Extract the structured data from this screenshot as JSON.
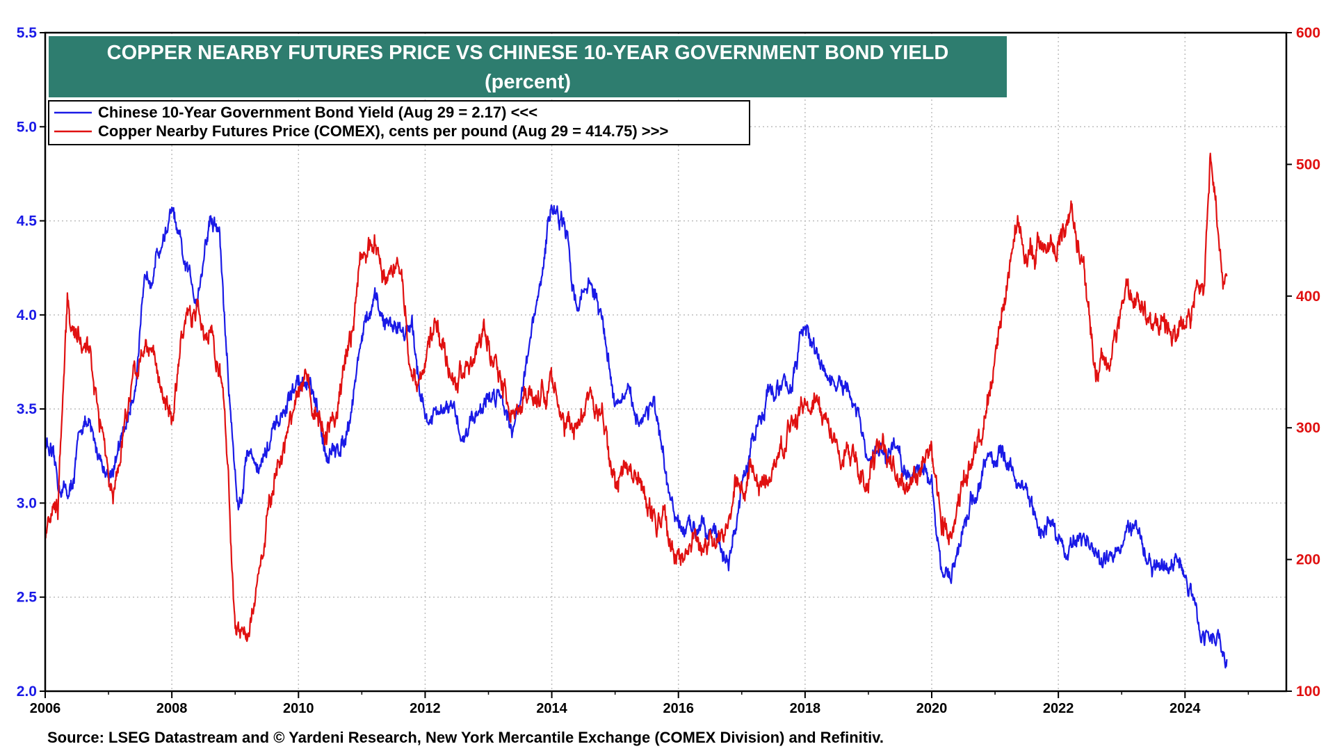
{
  "chart_data": {
    "type": "line",
    "title": "COPPER NEARBY FUTURES PRICE VS CHINESE 10-YEAR GOVERNMENT BOND YIELD",
    "subtitle": "(percent)",
    "source": "Source: LSEG Datastream and © Yardeni Research, New York Mercantile Exchange (COMEX Division) and Refinitiv.",
    "x_range": [
      2006,
      2025.6
    ],
    "x_ticks": [
      "2006",
      "2008",
      "2010",
      "2012",
      "2014",
      "2016",
      "2018",
      "2020",
      "2022",
      "2024"
    ],
    "y_left": {
      "range": [
        2.0,
        5.5
      ],
      "ticks": [
        "2.0",
        "2.5",
        "3.0",
        "3.5",
        "4.0",
        "4.5",
        "5.0",
        "5.5"
      ],
      "color": "#1a1ae6"
    },
    "y_right": {
      "range": [
        100,
        600
      ],
      "ticks": [
        "100",
        "200",
        "300",
        "400",
        "500",
        "600"
      ],
      "color": "#e01010"
    },
    "series": [
      {
        "name": "Chinese 10-Year Government Bond Yield",
        "legend": "Chinese 10-Year Government Bond Yield (Aug 29 = 2.17) <<<",
        "axis": "left",
        "color": "#1a1ae6",
        "points": [
          [
            2006.0,
            3.35
          ],
          [
            2006.2,
            3.1
          ],
          [
            2006.4,
            3.05
          ],
          [
            2006.6,
            3.45
          ],
          [
            2006.8,
            3.3
          ],
          [
            2007.0,
            3.15
          ],
          [
            2007.2,
            3.3
          ],
          [
            2007.4,
            3.6
          ],
          [
            2007.6,
            4.2
          ],
          [
            2007.8,
            4.35
          ],
          [
            2008.0,
            4.55
          ],
          [
            2008.2,
            4.25
          ],
          [
            2008.4,
            4.1
          ],
          [
            2008.6,
            4.5
          ],
          [
            2008.75,
            4.45
          ],
          [
            2008.9,
            3.6
          ],
          [
            2009.05,
            2.95
          ],
          [
            2009.2,
            3.3
          ],
          [
            2009.4,
            3.2
          ],
          [
            2009.6,
            3.35
          ],
          [
            2009.8,
            3.5
          ],
          [
            2010.0,
            3.65
          ],
          [
            2010.2,
            3.6
          ],
          [
            2010.4,
            3.3
          ],
          [
            2010.6,
            3.25
          ],
          [
            2010.8,
            3.45
          ],
          [
            2011.0,
            3.9
          ],
          [
            2011.2,
            4.05
          ],
          [
            2011.4,
            3.95
          ],
          [
            2011.6,
            3.95
          ],
          [
            2011.8,
            3.9
          ],
          [
            2012.0,
            3.45
          ],
          [
            2012.2,
            3.45
          ],
          [
            2012.4,
            3.5
          ],
          [
            2012.6,
            3.35
          ],
          [
            2012.8,
            3.5
          ],
          [
            2013.0,
            3.55
          ],
          [
            2013.2,
            3.6
          ],
          [
            2013.4,
            3.4
          ],
          [
            2013.6,
            3.75
          ],
          [
            2013.8,
            4.1
          ],
          [
            2014.0,
            4.6
          ],
          [
            2014.2,
            4.45
          ],
          [
            2014.4,
            4.05
          ],
          [
            2014.6,
            4.2
          ],
          [
            2014.8,
            3.95
          ],
          [
            2015.0,
            3.55
          ],
          [
            2015.2,
            3.55
          ],
          [
            2015.4,
            3.45
          ],
          [
            2015.6,
            3.55
          ],
          [
            2015.8,
            3.1
          ],
          [
            2016.0,
            2.85
          ],
          [
            2016.2,
            2.85
          ],
          [
            2016.4,
            2.95
          ],
          [
            2016.6,
            2.8
          ],
          [
            2016.8,
            2.7
          ],
          [
            2017.0,
            3.05
          ],
          [
            2017.2,
            3.35
          ],
          [
            2017.4,
            3.6
          ],
          [
            2017.6,
            3.6
          ],
          [
            2017.8,
            3.65
          ],
          [
            2018.0,
            3.95
          ],
          [
            2018.2,
            3.75
          ],
          [
            2018.4,
            3.65
          ],
          [
            2018.6,
            3.6
          ],
          [
            2018.8,
            3.5
          ],
          [
            2019.0,
            3.2
          ],
          [
            2019.2,
            3.25
          ],
          [
            2019.4,
            3.3
          ],
          [
            2019.6,
            3.15
          ],
          [
            2019.8,
            3.2
          ],
          [
            2020.0,
            3.1
          ],
          [
            2020.15,
            2.7
          ],
          [
            2020.3,
            2.55
          ],
          [
            2020.5,
            2.9
          ],
          [
            2020.7,
            3.05
          ],
          [
            2020.9,
            3.25
          ],
          [
            2021.1,
            3.25
          ],
          [
            2021.3,
            3.15
          ],
          [
            2021.5,
            3.05
          ],
          [
            2021.7,
            2.85
          ],
          [
            2021.9,
            2.9
          ],
          [
            2022.1,
            2.75
          ],
          [
            2022.3,
            2.8
          ],
          [
            2022.5,
            2.8
          ],
          [
            2022.7,
            2.65
          ],
          [
            2022.9,
            2.75
          ],
          [
            2023.1,
            2.9
          ],
          [
            2023.3,
            2.8
          ],
          [
            2023.5,
            2.65
          ],
          [
            2023.7,
            2.65
          ],
          [
            2023.9,
            2.7
          ],
          [
            2024.1,
            2.5
          ],
          [
            2024.3,
            2.3
          ],
          [
            2024.5,
            2.3
          ],
          [
            2024.66,
            2.17
          ]
        ]
      },
      {
        "name": "Copper Nearby Futures Price (COMEX), cents per pound",
        "legend": "Copper Nearby Futures Price (COMEX), cents per pound (Aug 29 = 414.75) >>>",
        "axis": "right",
        "color": "#e01010",
        "points": [
          [
            2006.0,
            225
          ],
          [
            2006.2,
            240
          ],
          [
            2006.35,
            395
          ],
          [
            2006.5,
            370
          ],
          [
            2006.7,
            355
          ],
          [
            2006.9,
            300
          ],
          [
            2007.05,
            255
          ],
          [
            2007.2,
            280
          ],
          [
            2007.4,
            345
          ],
          [
            2007.6,
            370
          ],
          [
            2007.8,
            335
          ],
          [
            2008.0,
            310
          ],
          [
            2008.2,
            380
          ],
          [
            2008.4,
            385
          ],
          [
            2008.6,
            370
          ],
          [
            2008.8,
            330
          ],
          [
            2008.9,
            250
          ],
          [
            2009.0,
            150
          ],
          [
            2009.2,
            145
          ],
          [
            2009.35,
            185
          ],
          [
            2009.5,
            225
          ],
          [
            2009.7,
            270
          ],
          [
            2009.9,
            310
          ],
          [
            2010.0,
            335
          ],
          [
            2010.2,
            330
          ],
          [
            2010.4,
            290
          ],
          [
            2010.6,
            310
          ],
          [
            2010.8,
            360
          ],
          [
            2011.0,
            430
          ],
          [
            2011.2,
            440
          ],
          [
            2011.4,
            415
          ],
          [
            2011.6,
            430
          ],
          [
            2011.75,
            350
          ],
          [
            2011.9,
            335
          ],
          [
            2012.0,
            350
          ],
          [
            2012.2,
            380
          ],
          [
            2012.4,
            340
          ],
          [
            2012.6,
            340
          ],
          [
            2012.8,
            360
          ],
          [
            2013.0,
            365
          ],
          [
            2013.2,
            335
          ],
          [
            2013.4,
            315
          ],
          [
            2013.6,
            325
          ],
          [
            2013.8,
            320
          ],
          [
            2014.0,
            335
          ],
          [
            2014.2,
            305
          ],
          [
            2014.4,
            310
          ],
          [
            2014.6,
            320
          ],
          [
            2014.8,
            300
          ],
          [
            2015.0,
            260
          ],
          [
            2015.2,
            275
          ],
          [
            2015.4,
            260
          ],
          [
            2015.6,
            235
          ],
          [
            2015.8,
            225
          ],
          [
            2016.0,
            205
          ],
          [
            2016.2,
            215
          ],
          [
            2016.4,
            210
          ],
          [
            2016.6,
            215
          ],
          [
            2016.8,
            220
          ],
          [
            2016.9,
            260
          ],
          [
            2017.2,
            265
          ],
          [
            2017.4,
            255
          ],
          [
            2017.6,
            280
          ],
          [
            2017.8,
            305
          ],
          [
            2018.0,
            320
          ],
          [
            2018.2,
            310
          ],
          [
            2018.4,
            305
          ],
          [
            2018.6,
            280
          ],
          [
            2018.8,
            275
          ],
          [
            2019.0,
            265
          ],
          [
            2019.2,
            290
          ],
          [
            2019.4,
            270
          ],
          [
            2019.6,
            260
          ],
          [
            2019.8,
            265
          ],
          [
            2020.0,
            280
          ],
          [
            2020.15,
            230
          ],
          [
            2020.3,
            220
          ],
          [
            2020.5,
            260
          ],
          [
            2020.7,
            290
          ],
          [
            2020.9,
            320
          ],
          [
            2021.0,
            360
          ],
          [
            2021.2,
            410
          ],
          [
            2021.35,
            460
          ],
          [
            2021.5,
            430
          ],
          [
            2021.7,
            440
          ],
          [
            2021.9,
            440
          ],
          [
            2022.0,
            440
          ],
          [
            2022.2,
            455
          ],
          [
            2022.4,
            430
          ],
          [
            2022.5,
            380
          ],
          [
            2022.6,
            340
          ],
          [
            2022.8,
            350
          ],
          [
            2022.9,
            365
          ],
          [
            2023.1,
            410
          ],
          [
            2023.3,
            395
          ],
          [
            2023.5,
            380
          ],
          [
            2023.7,
            375
          ],
          [
            2023.9,
            370
          ],
          [
            2024.1,
            385
          ],
          [
            2024.3,
            415
          ],
          [
            2024.4,
            500
          ],
          [
            2024.5,
            455
          ],
          [
            2024.6,
            405
          ],
          [
            2024.66,
            415
          ]
        ]
      }
    ]
  }
}
